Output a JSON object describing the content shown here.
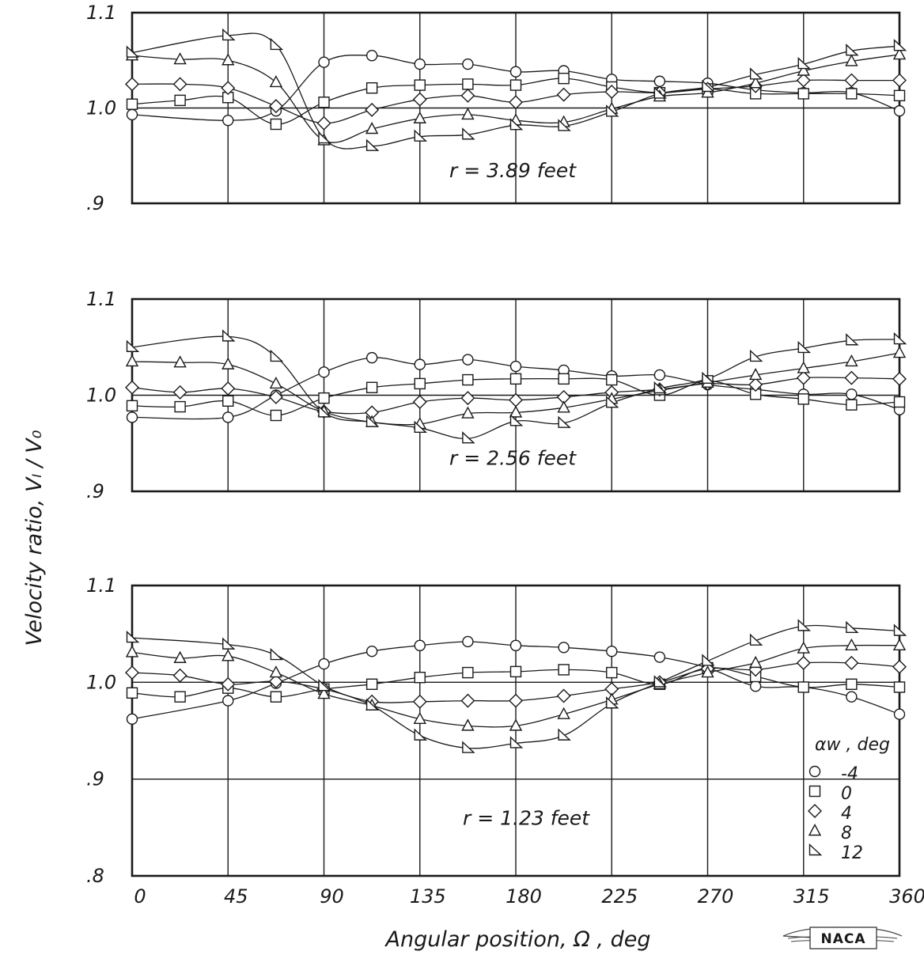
{
  "chart_data": {
    "type": "line",
    "ylabel": "Velocity ratio,  Vₗ / V₀",
    "xlabel": "Angular position,  Ω ,  deg",
    "x_ticks": [
      "0",
      "45",
      "90",
      "135",
      "180",
      "225",
      "270",
      "315",
      "360"
    ],
    "legend": {
      "title": "αw , deg",
      "placement": "bottom-right of lower panel",
      "entries": [
        {
          "label": "-4",
          "marker": "circle"
        },
        {
          "label": "0",
          "marker": "square"
        },
        {
          "label": "4",
          "marker": "diamond"
        },
        {
          "label": "8",
          "marker": "triangle"
        },
        {
          "label": "12",
          "marker": "flagged-triangle"
        }
      ]
    },
    "logo": "NACA",
    "panels": [
      {
        "annotation": "r = 3.89 feet",
        "ylim": [
          0.9,
          1.1
        ],
        "y_ticks": [
          "1.1",
          "1.0",
          ".9"
        ],
        "series": [
          {
            "name": "-4",
            "x": [
              0,
              45,
              67.5,
              90,
              112.5,
              135,
              157.5,
              180,
              202.5,
              225,
              247.5,
              270,
              292.5,
              315,
              337.5,
              360
            ],
            "y": [
              0.993,
              0.987,
              0.997,
              1.048,
              1.055,
              1.046,
              1.046,
              1.038,
              1.039,
              1.03,
              1.028,
              1.026,
              1.019,
              1.016,
              1.016,
              0.997
            ]
          },
          {
            "name": "0",
            "x": [
              0,
              22.5,
              45,
              67.5,
              90,
              112.5,
              135,
              157.5,
              180,
              202.5,
              225,
              247.5,
              270,
              292.5,
              315,
              337.5,
              360
            ],
            "y": [
              1.004,
              1.008,
              1.011,
              0.983,
              1.006,
              1.021,
              1.024,
              1.025,
              1.024,
              1.031,
              1.022,
              1.016,
              1.02,
              1.015,
              1.015,
              1.015,
              1.013
            ]
          },
          {
            "name": "4",
            "x": [
              0,
              22.5,
              45,
              67.5,
              90,
              112.5,
              135,
              157.5,
              180,
              202.5,
              225,
              247.5,
              270,
              292.5,
              315,
              337.5,
              360
            ],
            "y": [
              1.025,
              1.025,
              1.021,
              1.002,
              0.984,
              0.998,
              1.009,
              1.013,
              1.006,
              1.014,
              1.017,
              1.016,
              1.02,
              1.023,
              1.029,
              1.029,
              1.029
            ]
          },
          {
            "name": "8",
            "x": [
              0,
              22.5,
              45,
              67.5,
              90,
              112.5,
              135,
              157.5,
              180,
              202.5,
              225,
              247.5,
              270,
              292.5,
              315,
              337.5,
              360
            ],
            "y": [
              1.055,
              1.051,
              1.05,
              1.027,
              0.966,
              0.978,
              0.989,
              0.993,
              0.987,
              0.985,
              0.999,
              1.012,
              1.016,
              1.026,
              1.039,
              1.049,
              1.056
            ]
          },
          {
            "name": "12",
            "x": [
              0,
              45,
              67.5,
              90,
              112.5,
              135,
              157.5,
              180,
              202.5,
              225,
              247.5,
              270,
              292.5,
              315,
              337.5,
              360
            ],
            "y": [
              1.058,
              1.076,
              1.066,
              0.968,
              0.96,
              0.97,
              0.972,
              0.982,
              0.981,
              0.996,
              1.015,
              1.022,
              1.035,
              1.046,
              1.06,
              1.065
            ]
          }
        ]
      },
      {
        "annotation": "r = 2.56 feet",
        "ylim": [
          0.9,
          1.1
        ],
        "y_ticks": [
          "1.1",
          "1.0",
          ".9"
        ],
        "series": [
          {
            "name": "-4",
            "x": [
              0,
              45,
              67.5,
              90,
              112.5,
              135,
              157.5,
              180,
              202.5,
              225,
              247.5,
              270,
              292.5,
              315,
              337.5,
              360
            ],
            "y": [
              0.977,
              0.977,
              1.0,
              1.024,
              1.039,
              1.032,
              1.037,
              1.03,
              1.026,
              1.02,
              1.021,
              1.011,
              1.006,
              1.001,
              1.001,
              0.985
            ]
          },
          {
            "name": "0",
            "x": [
              0,
              22.5,
              45,
              67.5,
              90,
              112.5,
              135,
              157.5,
              180,
              202.5,
              225,
              247.5,
              270,
              292.5,
              315,
              337.5,
              360
            ],
            "y": [
              0.989,
              0.988,
              0.994,
              0.979,
              0.997,
              1.008,
              1.012,
              1.016,
              1.017,
              1.017,
              1.016,
              1.0,
              1.015,
              1.001,
              0.996,
              0.99,
              0.993
            ]
          },
          {
            "name": "4",
            "x": [
              0,
              22.5,
              45,
              67.5,
              90,
              112.5,
              135,
              157.5,
              180,
              202.5,
              225,
              247.5,
              270,
              292.5,
              315,
              337.5,
              360
            ],
            "y": [
              1.008,
              1.003,
              1.007,
              0.998,
              0.983,
              0.982,
              0.993,
              0.997,
              0.995,
              0.998,
              1.003,
              1.006,
              1.012,
              1.011,
              1.018,
              1.018,
              1.017
            ]
          },
          {
            "name": "8",
            "x": [
              0,
              22.5,
              45,
              67.5,
              90,
              112.5,
              135,
              157.5,
              180,
              202.5,
              225,
              247.5,
              270,
              292.5,
              315,
              337.5,
              360
            ],
            "y": [
              1.035,
              1.034,
              1.032,
              1.012,
              0.983,
              0.972,
              0.97,
              0.981,
              0.982,
              0.987,
              0.996,
              1.005,
              1.013,
              1.021,
              1.028,
              1.035,
              1.044
            ]
          },
          {
            "name": "12",
            "x": [
              0,
              45,
              67.5,
              90,
              112.5,
              135,
              157.5,
              180,
              202.5,
              225,
              247.5,
              270,
              292.5,
              315,
              337.5,
              360
            ],
            "y": [
              1.05,
              1.061,
              1.04,
              0.982,
              0.972,
              0.966,
              0.955,
              0.973,
              0.971,
              0.992,
              1.007,
              1.017,
              1.04,
              1.049,
              1.057,
              1.058
            ]
          }
        ]
      },
      {
        "annotation": "r = 1.23 feet",
        "ylim": [
          0.8,
          1.1
        ],
        "y_ticks": [
          "1.1",
          "1.0",
          ".9",
          ".8"
        ],
        "series": [
          {
            "name": "-4",
            "x": [
              0,
              45,
              67.5,
              90,
              112.5,
              135,
              157.5,
              180,
              202.5,
              225,
              247.5,
              270,
              292.5,
              315,
              337.5,
              360
            ],
            "y": [
              0.962,
              0.981,
              0.999,
              1.019,
              1.032,
              1.038,
              1.042,
              1.038,
              1.036,
              1.032,
              1.026,
              1.015,
              0.996,
              0.995,
              0.985,
              0.967
            ]
          },
          {
            "name": "0",
            "x": [
              0,
              22.5,
              45,
              67.5,
              90,
              112.5,
              135,
              157.5,
              180,
              202.5,
              225,
              247.5,
              270,
              292.5,
              315,
              337.5,
              360
            ],
            "y": [
              0.989,
              0.985,
              0.994,
              0.985,
              0.993,
              0.998,
              1.005,
              1.01,
              1.011,
              1.013,
              1.01,
              0.998,
              1.015,
              1.006,
              0.995,
              0.998,
              0.995
            ]
          },
          {
            "name": "4",
            "x": [
              0,
              22.5,
              45,
              67.5,
              90,
              112.5,
              135,
              157.5,
              180,
              202.5,
              225,
              247.5,
              270,
              292.5,
              315,
              337.5,
              360
            ],
            "y": [
              1.01,
              1.007,
              0.998,
              1.001,
              0.993,
              0.98,
              0.98,
              0.981,
              0.981,
              0.986,
              0.993,
              1.0,
              1.014,
              1.013,
              1.02,
              1.02,
              1.016
            ]
          },
          {
            "name": "8",
            "x": [
              0,
              22.5,
              45,
              67.5,
              90,
              112.5,
              135,
              157.5,
              180,
              202.5,
              225,
              247.5,
              270,
              292.5,
              315,
              337.5,
              360
            ],
            "y": [
              1.031,
              1.025,
              1.027,
              1.01,
              0.988,
              0.976,
              0.962,
              0.955,
              0.955,
              0.967,
              0.982,
              0.998,
              1.01,
              1.02,
              1.035,
              1.038,
              1.038
            ]
          },
          {
            "name": "12",
            "x": [
              0,
              45,
              67.5,
              90,
              112.5,
              135,
              157.5,
              180,
              202.5,
              225,
              247.5,
              270,
              292.5,
              315,
              337.5,
              360
            ],
            "y": [
              1.046,
              1.039,
              1.028,
              0.996,
              0.976,
              0.945,
              0.932,
              0.937,
              0.945,
              0.978,
              1.0,
              1.022,
              1.043,
              1.058,
              1.056,
              1.053
            ]
          }
        ]
      }
    ]
  }
}
